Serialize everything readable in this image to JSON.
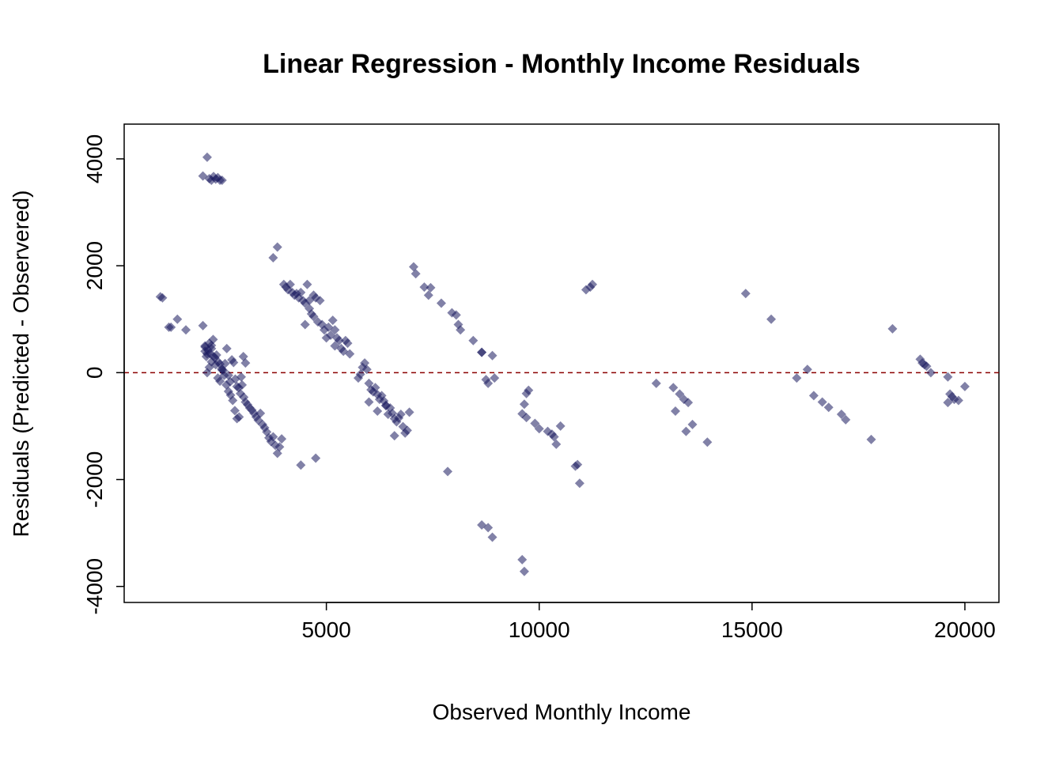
{
  "chart_data": {
    "type": "scatter",
    "title": "Linear Regression - Monthly Income Residuals",
    "xlabel": "Observed Monthly Income",
    "ylabel": "Residuals (Predicted - Observered)",
    "xlim": [
      250,
      20800
    ],
    "ylim": [
      -4300,
      4650
    ],
    "xticks": [
      5000,
      10000,
      15000,
      20000
    ],
    "yticks": [
      -4000,
      -2000,
      0,
      2000,
      4000
    ],
    "reference_line": {
      "y": 0,
      "style": "dashed",
      "color": "#8b0000"
    },
    "marker": {
      "shape": "diamond",
      "color": "#1a1a5e"
    },
    "grid": false,
    "legend": "none",
    "series": [
      {
        "x": [
          1100,
          1150,
          1300,
          1350,
          1500,
          1700,
          2100,
          2150,
          2150,
          2200,
          2250,
          2300,
          2150,
          2180,
          2220,
          2260,
          2300,
          2340,
          2380,
          2420,
          2460,
          2500,
          2540,
          2580,
          2620,
          2660,
          2700,
          2740,
          2780,
          2820,
          2860,
          2900,
          2940,
          2980,
          3020,
          3060,
          3100,
          3150,
          3200,
          3250,
          3300,
          3350,
          3400,
          3450,
          3500,
          3550,
          3600,
          3650,
          3700,
          3750,
          3800,
          3850,
          3900,
          3950,
          2200,
          2250,
          2300,
          2350,
          2400,
          2450,
          2500,
          2550,
          2600,
          2650,
          2700,
          2750,
          2800,
          2850,
          2900,
          2950,
          3000,
          3050,
          3100,
          2100,
          2200,
          2250,
          2300,
          2350,
          2400,
          2450,
          2500,
          2550,
          4400,
          4750,
          3750,
          3850,
          4000,
          4050,
          4100,
          4150,
          4200,
          4250,
          4300,
          4350,
          4400,
          4450,
          4500,
          4550,
          4600,
          4650,
          4700,
          4750,
          4800,
          4850,
          4900,
          4950,
          5000,
          5050,
          5100,
          5150,
          5200,
          5250,
          5300,
          5350,
          5400,
          5450,
          5500,
          5550,
          4500,
          4600,
          4700,
          5200,
          5750,
          5800,
          5850,
          5900,
          5950,
          6000,
          6050,
          6100,
          6150,
          6200,
          6250,
          6300,
          6350,
          6400,
          6450,
          6500,
          6550,
          6600,
          6650,
          6700,
          6750,
          6800,
          6850,
          6900,
          6950,
          6000,
          6200,
          6400,
          6600,
          7050,
          7100,
          7300,
          7400,
          7450,
          7700,
          7950,
          8050,
          8100,
          8150,
          8450,
          8650,
          8650,
          8750,
          8800,
          8900,
          8950,
          7850,
          8650,
          8800,
          8900,
          9600,
          9650,
          9700,
          9600,
          9650,
          9750,
          9700,
          9900,
          10000,
          10200,
          10300,
          10350,
          10400,
          10500,
          10850,
          10900,
          10950,
          11100,
          11200,
          11250,
          12750,
          13150,
          13200,
          13300,
          13400,
          13450,
          13500,
          13600,
          13950,
          14850,
          15450,
          16050,
          16300,
          16450,
          16650,
          16800,
          17100,
          17200,
          17800,
          18300,
          18950,
          19000,
          19050,
          19100,
          19200,
          19600,
          19650,
          19700,
          19750,
          19850,
          20000,
          19600
        ],
        "y": [
          1420,
          1400,
          850,
          850,
          1000,
          800,
          880,
          500,
          400,
          350,
          550,
          450,
          480,
          300,
          420,
          360,
          510,
          620,
          280,
          330,
          200,
          160,
          70,
          40,
          170,
          450,
          -50,
          -170,
          240,
          190,
          -120,
          -260,
          -280,
          -390,
          -230,
          -460,
          -550,
          -600,
          -660,
          -700,
          -760,
          -830,
          -890,
          -760,
          -970,
          -1030,
          -1110,
          -1220,
          -1290,
          -1200,
          -1360,
          -1510,
          -1390,
          -1240,
          0,
          100,
          200,
          300,
          150,
          -100,
          -160,
          50,
          -50,
          -230,
          -350,
          -420,
          -520,
          -710,
          -860,
          -830,
          -80,
          300,
          180,
          3680,
          4030,
          3630,
          3600,
          3670,
          3620,
          3650,
          3600,
          3600,
          -1730,
          -1600,
          2150,
          2350,
          1650,
          1600,
          1550,
          1650,
          1500,
          1450,
          1480,
          1400,
          1500,
          1350,
          1300,
          1650,
          1200,
          1100,
          1050,
          1400,
          950,
          1350,
          900,
          800,
          650,
          850,
          700,
          980,
          500,
          650,
          600,
          450,
          400,
          600,
          550,
          350,
          900,
          1350,
          1450,
          800,
          -100,
          -30,
          100,
          180,
          60,
          -200,
          -320,
          -360,
          -280,
          -410,
          -500,
          -430,
          -530,
          -610,
          -780,
          -660,
          -760,
          -860,
          -920,
          -850,
          -780,
          -1010,
          -1130,
          -1080,
          -740,
          -550,
          -720,
          -620,
          -1180,
          1980,
          1850,
          1600,
          1450,
          1590,
          1300,
          1120,
          1080,
          900,
          800,
          600,
          380,
          380,
          -130,
          -200,
          320,
          -100,
          -1850,
          -2850,
          -2900,
          -3080,
          -3500,
          -3720,
          -390,
          -770,
          -590,
          -330,
          -840,
          -950,
          -1050,
          -1100,
          -1150,
          -1200,
          -1340,
          -1000,
          -1750,
          -1720,
          -2070,
          1550,
          1600,
          1650,
          -200,
          -280,
          -720,
          -400,
          -500,
          -1100,
          -560,
          -970,
          -1300,
          1480,
          1000,
          -100,
          60,
          -430,
          -550,
          -650,
          -780,
          -880,
          -1250,
          820,
          250,
          180,
          150,
          120,
          0,
          -80,
          -400,
          -450,
          -500,
          -520,
          -260,
          -560
        ]
      }
    ]
  }
}
